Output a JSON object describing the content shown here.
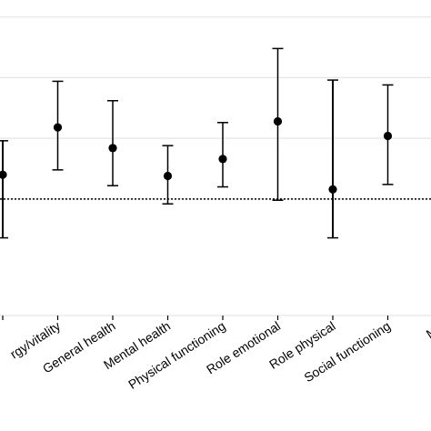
{
  "chart_data": {
    "type": "errorbar",
    "categories": [
      "",
      "Energy/vitality",
      "General health",
      "Mental health",
      "Physical functioning",
      "Role emotional",
      "Role physical",
      "Social functioning",
      "MCS"
    ],
    "tick_labels_visible": [
      "",
      "rgy/vitality",
      "General health",
      "Mental health",
      "Physical functioning",
      "Role emotional",
      "Role physical",
      "Social functioning",
      "MC"
    ],
    "series": [
      {
        "estimate": [
          1.0,
          2.95,
          2.1,
          0.95,
          1.65,
          3.2,
          0.4,
          2.6,
          null
        ],
        "lower": [
          -1.6,
          1.2,
          0.55,
          -0.2,
          0.5,
          -0.05,
          -1.6,
          0.6,
          null
        ],
        "upper": [
          2.4,
          4.85,
          4.05,
          2.2,
          3.15,
          6.2,
          4.9,
          4.7,
          null
        ]
      }
    ],
    "reference_line": 0,
    "reference_line_style": "dotted",
    "ylim": [
      -4.8,
      7.6
    ],
    "gridlines": [
      0,
      2.5,
      5,
      7.5
    ],
    "grid": true,
    "xlabel": "",
    "ylabel": "",
    "title": ""
  }
}
